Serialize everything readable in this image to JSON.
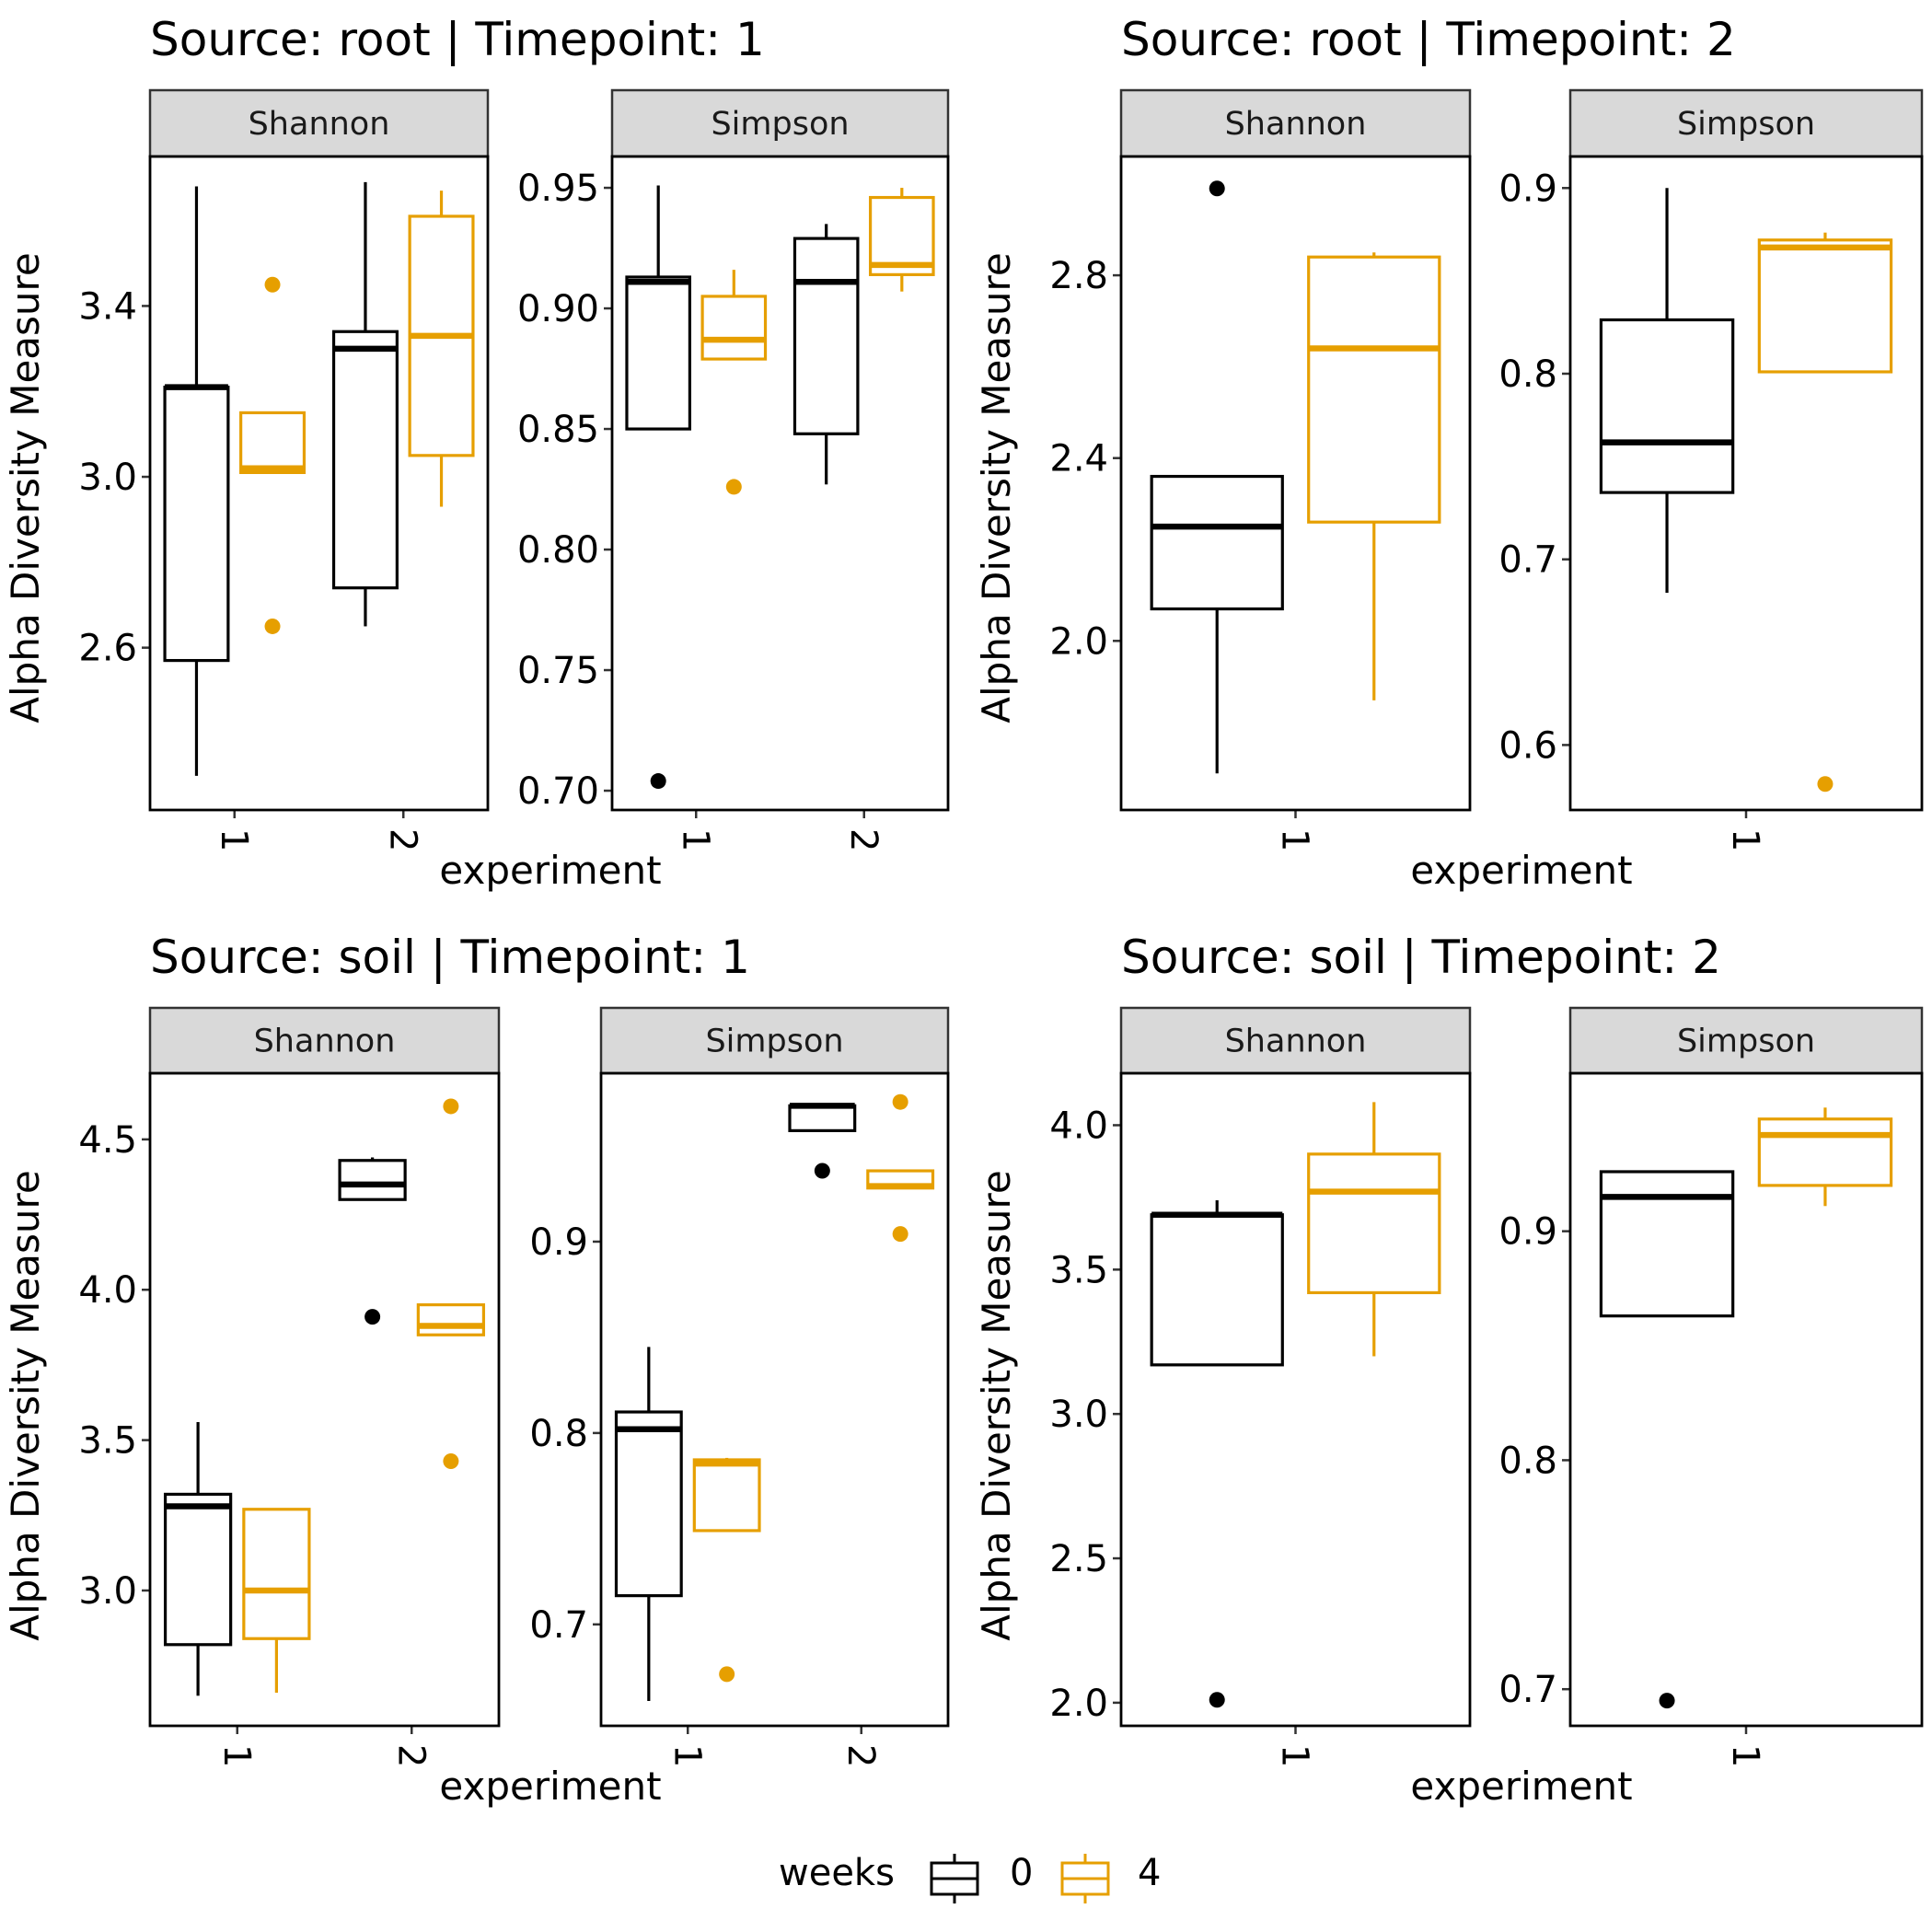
{
  "colors": {
    "0": "#000000",
    "4": "#E69F00"
  },
  "legend": {
    "title": "weeks",
    "items": [
      {
        "key": "0",
        "label": "0"
      },
      {
        "key": "4",
        "label": "4"
      }
    ]
  },
  "chart_data": [
    {
      "type": "boxplot",
      "title": "Source: root | Timepoint: 1",
      "xlabel": "experiment",
      "ylabel": "Alpha Diversity Measure",
      "facets": [
        {
          "name": "Shannon",
          "ylim": [
            2.22,
            3.75
          ],
          "yticks": [
            2.6,
            3.0,
            3.4
          ],
          "ytick_labels": [
            "2.6",
            "3.0",
            "3.4"
          ],
          "categories": [
            "1",
            "2"
          ],
          "boxes": [
            {
              "experiment": "1",
              "weeks": "0",
              "lw": 2.3,
              "q1": 2.57,
              "median": 3.21,
              "q3": 3.21,
              "uw": 3.68,
              "outliers": []
            },
            {
              "experiment": "1",
              "weeks": "4",
              "lw": 3.01,
              "q1": 3.01,
              "median": 3.02,
              "q3": 3.15,
              "uw": 3.15,
              "outliers": [
                2.65,
                3.45
              ]
            },
            {
              "experiment": "2",
              "weeks": "0",
              "lw": 2.65,
              "q1": 2.74,
              "median": 3.3,
              "q3": 3.34,
              "uw": 3.69,
              "outliers": []
            },
            {
              "experiment": "2",
              "weeks": "4",
              "lw": 2.93,
              "q1": 3.05,
              "median": 3.33,
              "q3": 3.61,
              "uw": 3.67,
              "outliers": []
            }
          ]
        },
        {
          "name": "Simpson",
          "ylim": [
            0.692,
            0.963
          ],
          "yticks": [
            0.7,
            0.75,
            0.8,
            0.85,
            0.9,
            0.95
          ],
          "ytick_labels": [
            "0.70",
            "0.75",
            "0.80",
            "0.85",
            "0.90",
            "0.95"
          ],
          "categories": [
            "1",
            "2"
          ],
          "boxes": [
            {
              "experiment": "1",
              "weeks": "0",
              "lw": 0.85,
              "q1": 0.85,
              "median": 0.911,
              "q3": 0.913,
              "uw": 0.951,
              "outliers": [
                0.704
              ]
            },
            {
              "experiment": "1",
              "weeks": "4",
              "lw": 0.879,
              "q1": 0.879,
              "median": 0.887,
              "q3": 0.905,
              "uw": 0.916,
              "outliers": [
                0.826
              ]
            },
            {
              "experiment": "2",
              "weeks": "0",
              "lw": 0.827,
              "q1": 0.848,
              "median": 0.911,
              "q3": 0.929,
              "uw": 0.935,
              "outliers": []
            },
            {
              "experiment": "2",
              "weeks": "4",
              "lw": 0.907,
              "q1": 0.914,
              "median": 0.918,
              "q3": 0.946,
              "uw": 0.95,
              "outliers": []
            }
          ]
        }
      ]
    },
    {
      "type": "boxplot",
      "title": "Source: root | Timepoint: 2",
      "xlabel": "experiment",
      "ylabel": "Alpha Diversity Measure",
      "facets": [
        {
          "name": "Shannon",
          "ylim": [
            1.63,
            3.06
          ],
          "yticks": [
            2.0,
            2.4,
            2.8
          ],
          "ytick_labels": [
            "2.0",
            "2.4",
            "2.8"
          ],
          "categories": [
            "1"
          ],
          "boxes": [
            {
              "experiment": "1",
              "weeks": "0",
              "lw": 1.71,
              "q1": 2.07,
              "median": 2.25,
              "q3": 2.36,
              "uw": 2.36,
              "outliers": [
                2.99
              ]
            },
            {
              "experiment": "1",
              "weeks": "4",
              "lw": 1.87,
              "q1": 2.26,
              "median": 2.64,
              "q3": 2.84,
              "uw": 2.85,
              "outliers": []
            }
          ]
        },
        {
          "name": "Simpson",
          "ylim": [
            0.565,
            0.917
          ],
          "yticks": [
            0.6,
            0.7,
            0.8,
            0.9
          ],
          "ytick_labels": [
            "0.6",
            "0.7",
            "0.8",
            "0.9"
          ],
          "categories": [
            "1"
          ],
          "boxes": [
            {
              "experiment": "1",
              "weeks": "0",
              "lw": 0.682,
              "q1": 0.736,
              "median": 0.763,
              "q3": 0.829,
              "uw": 0.9,
              "outliers": []
            },
            {
              "experiment": "1",
              "weeks": "4",
              "lw": 0.801,
              "q1": 0.801,
              "median": 0.868,
              "q3": 0.872,
              "uw": 0.876,
              "outliers": [
                0.579
              ]
            }
          ]
        }
      ]
    },
    {
      "type": "boxplot",
      "title": "Source: soil | Timepoint: 1",
      "xlabel": "experiment",
      "ylabel": "Alpha Diversity Measure",
      "facets": [
        {
          "name": "Shannon",
          "ylim": [
            2.55,
            4.72
          ],
          "yticks": [
            3.0,
            3.5,
            4.0,
            4.5
          ],
          "ytick_labels": [
            "3.0",
            "3.5",
            "4.0",
            "4.5"
          ],
          "categories": [
            "1",
            "2"
          ],
          "boxes": [
            {
              "experiment": "1",
              "weeks": "0",
              "lw": 2.65,
              "q1": 2.82,
              "median": 3.28,
              "q3": 3.32,
              "uw": 3.56,
              "outliers": []
            },
            {
              "experiment": "1",
              "weeks": "4",
              "lw": 2.66,
              "q1": 2.84,
              "median": 3.0,
              "q3": 3.27,
              "uw": 3.27,
              "outliers": []
            },
            {
              "experiment": "2",
              "weeks": "0",
              "lw": 4.3,
              "q1": 4.3,
              "median": 4.35,
              "q3": 4.43,
              "uw": 4.44,
              "outliers": [
                3.91
              ]
            },
            {
              "experiment": "2",
              "weeks": "4",
              "lw": 3.85,
              "q1": 3.85,
              "median": 3.88,
              "q3": 3.95,
              "uw": 3.95,
              "outliers": [
                3.43,
                4.61
              ]
            }
          ]
        },
        {
          "name": "Simpson",
          "ylim": [
            0.647,
            0.988
          ],
          "yticks": [
            0.7,
            0.8,
            0.9
          ],
          "ytick_labels": [
            "0.7",
            "0.8",
            "0.9"
          ],
          "categories": [
            "1",
            "2"
          ],
          "boxes": [
            {
              "experiment": "1",
              "weeks": "0",
              "lw": 0.66,
              "q1": 0.715,
              "median": 0.802,
              "q3": 0.811,
              "uw": 0.845,
              "outliers": []
            },
            {
              "experiment": "1",
              "weeks": "4",
              "lw": 0.749,
              "q1": 0.749,
              "median": 0.784,
              "q3": 0.786,
              "uw": 0.787,
              "outliers": [
                0.674
              ]
            },
            {
              "experiment": "2",
              "weeks": "0",
              "lw": 0.958,
              "q1": 0.958,
              "median": 0.971,
              "q3": 0.971,
              "uw": 0.971,
              "outliers": [
                0.937
              ]
            },
            {
              "experiment": "2",
              "weeks": "4",
              "lw": 0.928,
              "q1": 0.928,
              "median": 0.929,
              "q3": 0.937,
              "uw": 0.937,
              "outliers": [
                0.904,
                0.973
              ]
            }
          ]
        }
      ]
    },
    {
      "type": "boxplot",
      "title": "Source: soil | Timepoint: 2",
      "xlabel": "experiment",
      "ylabel": "Alpha Diversity Measure",
      "facets": [
        {
          "name": "Shannon",
          "ylim": [
            1.92,
            4.18
          ],
          "yticks": [
            2.0,
            2.5,
            3.0,
            3.5,
            4.0
          ],
          "ytick_labels": [
            "2.0",
            "2.5",
            "3.0",
            "3.5",
            "4.0"
          ],
          "categories": [
            "1"
          ],
          "boxes": [
            {
              "experiment": "1",
              "weeks": "0",
              "lw": 3.17,
              "q1": 3.17,
              "median": 3.69,
              "q3": 3.69,
              "uw": 3.74,
              "outliers": [
                2.01
              ]
            },
            {
              "experiment": "1",
              "weeks": "4",
              "lw": 3.2,
              "q1": 3.42,
              "median": 3.77,
              "q3": 3.9,
              "uw": 4.08,
              "outliers": []
            }
          ]
        },
        {
          "name": "Simpson",
          "ylim": [
            0.684,
            0.969
          ],
          "yticks": [
            0.7,
            0.8,
            0.9
          ],
          "ytick_labels": [
            "0.7",
            "0.8",
            "0.9"
          ],
          "categories": [
            "1"
          ],
          "boxes": [
            {
              "experiment": "1",
              "weeks": "0",
              "lw": 0.863,
              "q1": 0.863,
              "median": 0.915,
              "q3": 0.926,
              "uw": 0.926,
              "outliers": [
                0.695
              ]
            },
            {
              "experiment": "1",
              "weeks": "4",
              "lw": 0.911,
              "q1": 0.92,
              "median": 0.942,
              "q3": 0.949,
              "uw": 0.954,
              "outliers": []
            }
          ]
        }
      ]
    }
  ]
}
